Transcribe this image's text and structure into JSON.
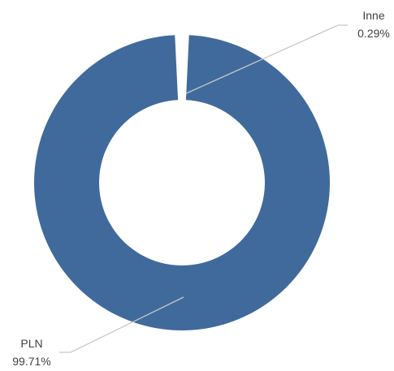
{
  "chart_data": {
    "type": "pie",
    "variant": "donut",
    "slices": [
      {
        "label": "Inne",
        "value": 0.29,
        "value_text": "0.29%",
        "color": "#ffffff"
      },
      {
        "label": "PLN",
        "value": 99.71,
        "value_text": "99.71%",
        "color": "#406a9c"
      }
    ],
    "legend": "none"
  }
}
